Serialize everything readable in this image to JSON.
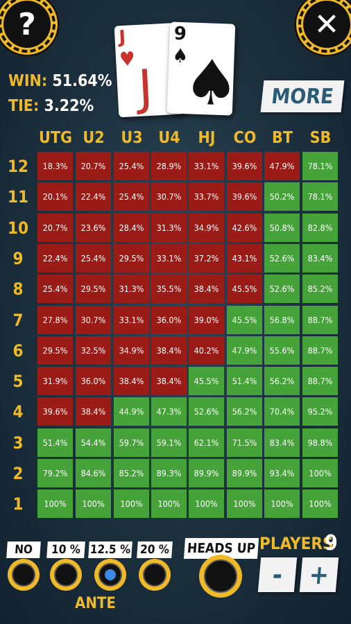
{
  "top": {
    "help_icon": "?",
    "close_icon": "✕",
    "win_label": "WIN:",
    "win_value": "51.64%",
    "tie_label": "TIE:",
    "tie_value": "3.22%",
    "more_label": "MORE"
  },
  "hand": {
    "card1": {
      "rank": "J",
      "suit": "♥",
      "color": "#c8342d"
    },
    "card2": {
      "rank": "9",
      "suit": "♠",
      "color": "#111111"
    }
  },
  "table": {
    "columns": [
      "UTG",
      "U2",
      "U3",
      "U4",
      "HJ",
      "CO",
      "BT",
      "SB"
    ],
    "rows": [
      {
        "label": "12",
        "cells": [
          "18.3%",
          "20.7%",
          "25.4%",
          "28.9%",
          "33.1%",
          "39.6%",
          "47.9%",
          "78.1%"
        ]
      },
      {
        "label": "11",
        "cells": [
          "20.1%",
          "22.4%",
          "25.4%",
          "30.7%",
          "33.7%",
          "39.6%",
          "50.2%",
          "78.1%"
        ]
      },
      {
        "label": "10",
        "cells": [
          "20.7%",
          "23.6%",
          "28.4%",
          "31.3%",
          "34.9%",
          "42.6%",
          "50.8%",
          "82.8%"
        ]
      },
      {
        "label": "9",
        "cells": [
          "22.4%",
          "25.4%",
          "29.5%",
          "33.1%",
          "37.2%",
          "43.1%",
          "52.6%",
          "83.4%"
        ]
      },
      {
        "label": "8",
        "cells": [
          "25.4%",
          "29.5%",
          "31.3%",
          "35.5%",
          "38.4%",
          "45.5%",
          "52.6%",
          "85.2%"
        ]
      },
      {
        "label": "7",
        "cells": [
          "27.8%",
          "30.7%",
          "33.1%",
          "36.0%",
          "39.0%",
          "45.5%",
          "56.8%",
          "88.7%"
        ]
      },
      {
        "label": "6",
        "cells": [
          "29.5%",
          "32.5%",
          "34.9%",
          "38.4%",
          "40.2%",
          "47.9%",
          "55.6%",
          "88.7%"
        ]
      },
      {
        "label": "5",
        "cells": [
          "31.9%",
          "36.0%",
          "38.4%",
          "38.4%",
          "45.5%",
          "51.4%",
          "56.2%",
          "88.7%"
        ]
      },
      {
        "label": "4",
        "cells": [
          "39.6%",
          "38.4%",
          "44.9%",
          "47.3%",
          "52.6%",
          "56.2%",
          "70.4%",
          "95.2%"
        ]
      },
      {
        "label": "3",
        "cells": [
          "51.4%",
          "54.4%",
          "59.7%",
          "59.1%",
          "62.1%",
          "71.5%",
          "83.4%",
          "98.8%"
        ]
      },
      {
        "label": "2",
        "cells": [
          "79.2%",
          "84.6%",
          "85.2%",
          "89.3%",
          "89.9%",
          "89.9%",
          "93.4%",
          "100%"
        ]
      },
      {
        "label": "1",
        "cells": [
          "100%",
          "100%",
          "100%",
          "100%",
          "100%",
          "100%",
          "100%",
          "100%"
        ]
      }
    ],
    "colors": {
      "fold": "#9b1b16",
      "play": "#45a339"
    },
    "play_flags": [
      [
        0,
        0,
        0,
        0,
        0,
        0,
        0,
        1
      ],
      [
        0,
        0,
        0,
        0,
        0,
        0,
        1,
        1
      ],
      [
        0,
        0,
        0,
        0,
        0,
        0,
        1,
        1
      ],
      [
        0,
        0,
        0,
        0,
        0,
        0,
        1,
        1
      ],
      [
        0,
        0,
        0,
        0,
        0,
        0,
        1,
        1
      ],
      [
        0,
        0,
        0,
        0,
        0,
        1,
        1,
        1
      ],
      [
        0,
        0,
        0,
        0,
        0,
        1,
        1,
        1
      ],
      [
        0,
        0,
        0,
        0,
        1,
        1,
        1,
        1
      ],
      [
        0,
        0,
        1,
        1,
        1,
        1,
        1,
        1
      ],
      [
        1,
        1,
        1,
        1,
        1,
        1,
        1,
        1
      ],
      [
        1,
        1,
        1,
        1,
        1,
        1,
        1,
        1
      ],
      [
        1,
        1,
        1,
        1,
        1,
        1,
        1,
        1
      ]
    ]
  },
  "ante": {
    "title": "ANTE",
    "options": [
      "NO",
      "10 %",
      "12.5 %",
      "20 %"
    ],
    "selected": "12.5 %"
  },
  "heads_up": {
    "label": "HEADS UP"
  },
  "players": {
    "label": "PLAYERS",
    "count": "9",
    "minus": "-",
    "plus": "+"
  }
}
